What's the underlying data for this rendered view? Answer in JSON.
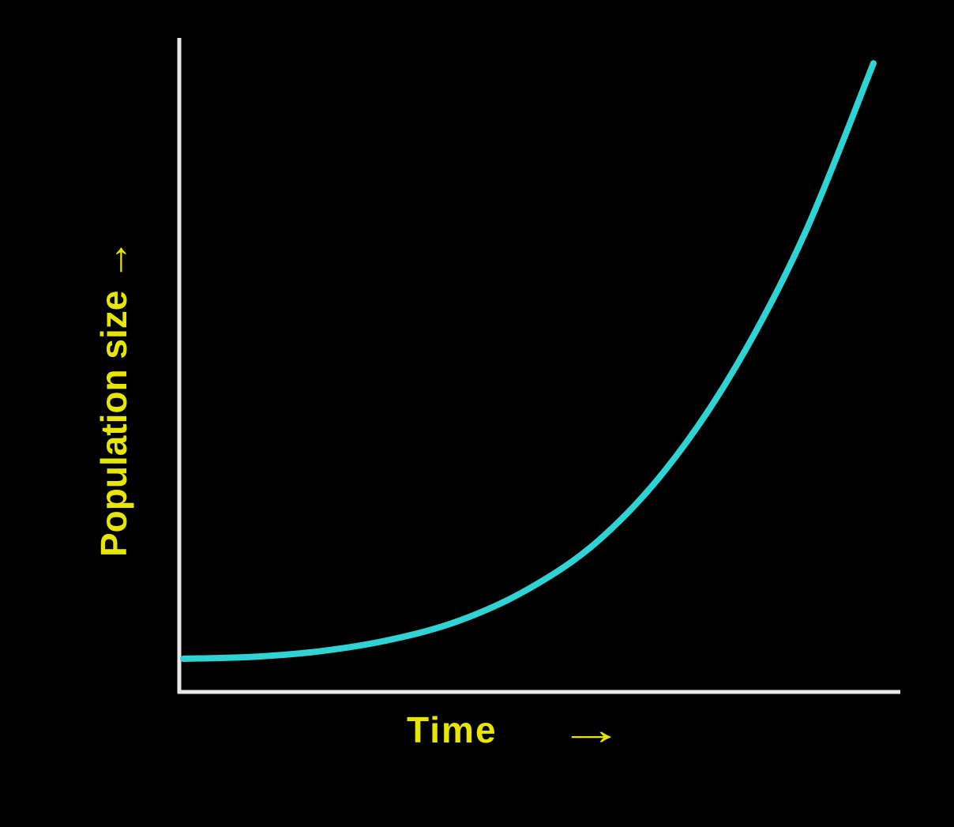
{
  "colors": {
    "background": "#000000",
    "axis": "#e8e8e8",
    "curve": "#2fd3d3",
    "label": "#e6e600"
  },
  "chart_data": {
    "type": "line",
    "title": "",
    "xlabel": "Time",
    "ylabel": "Population size",
    "xlabel_arrow": "→",
    "ylabel_arrow": "→",
    "grid": false,
    "ticks": false,
    "legend": "none",
    "series": [
      {
        "shape": "exponential (J-shaped) growth",
        "x": [
          0,
          0.1,
          0.2,
          0.3,
          0.4,
          0.5,
          0.6,
          0.7,
          0.8,
          0.9,
          1.0
        ],
        "y": [
          0.02,
          0.023,
          0.032,
          0.05,
          0.08,
          0.13,
          0.205,
          0.32,
          0.48,
          0.69,
          0.96
        ]
      }
    ],
    "xlim": [
      0,
      1
    ],
    "ylim": [
      0,
      1
    ]
  }
}
